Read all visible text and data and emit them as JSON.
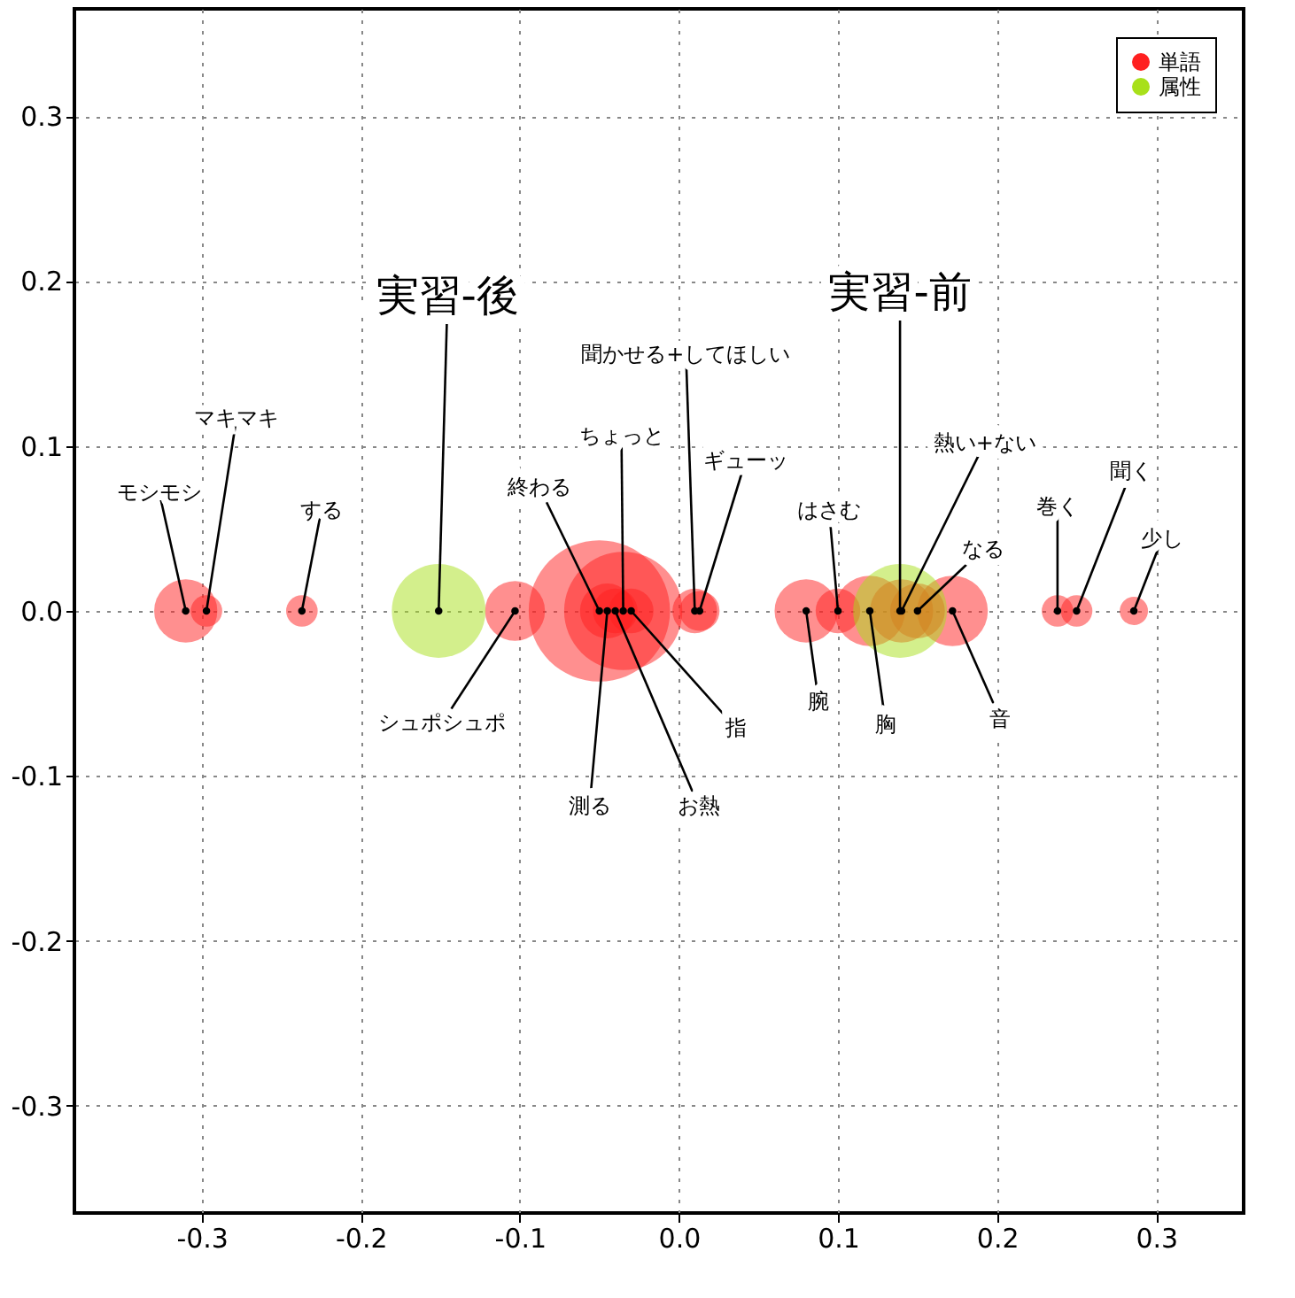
{
  "chart_data": {
    "type": "bubble",
    "xlim": [
      -0.38,
      0.355
    ],
    "ylim": [
      -0.365,
      0.365
    ],
    "xticks": [
      -0.3,
      -0.2,
      -0.1,
      {
        "value": 0,
        "label": "0.0"
      },
      0.1,
      0.2,
      0.3
    ],
    "yticks": [
      -0.3,
      -0.2,
      -0.1,
      {
        "value": 0,
        "label": "0.0"
      },
      0.1,
      0.2,
      0.3
    ],
    "grid": true,
    "legend": "top right",
    "series": [
      {
        "name": "単語",
        "color": "#ff2020",
        "x": [
          -0.31,
          -0.297,
          -0.237,
          -0.103,
          -0.05,
          -0.035,
          0.01,
          0.013,
          -0.045,
          -0.04,
          -0.03,
          0.08,
          0.1,
          0.12,
          0.14,
          0.15,
          0.172,
          0.238,
          0.25,
          0.286
        ],
        "values": [
          0,
          0,
          0,
          0,
          0,
          0,
          0,
          0,
          0,
          0,
          0,
          0,
          0,
          0,
          0,
          0,
          0,
          0,
          0,
          0
        ],
        "sizes": [
          0.2,
          0.05,
          0.05,
          0.18,
          1.0,
          0.7,
          0.1,
          0.08,
          0.15,
          0.1,
          0.1,
          0.2,
          0.1,
          0.25,
          0.2,
          0.15,
          0.25,
          0.05,
          0.05,
          0.04
        ]
      },
      {
        "name": "属性",
        "color": "#a8e01a",
        "x": [
          -0.151,
          0.139
        ],
        "values": [
          0,
          0
        ],
        "sizes": [
          0.44,
          0.44
        ]
      }
    ],
    "annotations": [
      {
        "text": "実習-後",
        "x": -0.151,
        "y": 0
      },
      {
        "text": "実習-前",
        "x": 0.139,
        "y": 0
      },
      {
        "text": "モシモシ",
        "x": -0.31,
        "y": 0
      },
      {
        "text": "マキマキ",
        "x": -0.297,
        "y": 0
      },
      {
        "text": "する",
        "x": -0.237,
        "y": 0
      },
      {
        "text": "シュポシュポ",
        "x": -0.103,
        "y": 0
      },
      {
        "text": "終わる",
        "x": -0.05,
        "y": 0
      },
      {
        "text": "ちょっと",
        "x": -0.035,
        "y": 0
      },
      {
        "text": "聞かせる+してほしい",
        "x": 0.01,
        "y": 0
      },
      {
        "text": "ギューッ",
        "x": 0.013,
        "y": 0
      },
      {
        "text": "測る",
        "x": -0.045,
        "y": 0
      },
      {
        "text": "お熱",
        "x": -0.04,
        "y": 0
      },
      {
        "text": "指",
        "x": -0.03,
        "y": 0
      },
      {
        "text": "腕",
        "x": 0.08,
        "y": 0
      },
      {
        "text": "はさむ",
        "x": 0.1,
        "y": 0
      },
      {
        "text": "胸",
        "x": 0.12,
        "y": 0
      },
      {
        "text": "熱い+ない",
        "x": 0.14,
        "y": 0
      },
      {
        "text": "なる",
        "x": 0.15,
        "y": 0
      },
      {
        "text": "音",
        "x": 0.172,
        "y": 0
      },
      {
        "text": "巻く",
        "x": 0.238,
        "y": 0
      },
      {
        "text": "聞く",
        "x": 0.25,
        "y": 0
      },
      {
        "text": "少し",
        "x": 0.286,
        "y": 0
      }
    ]
  }
}
